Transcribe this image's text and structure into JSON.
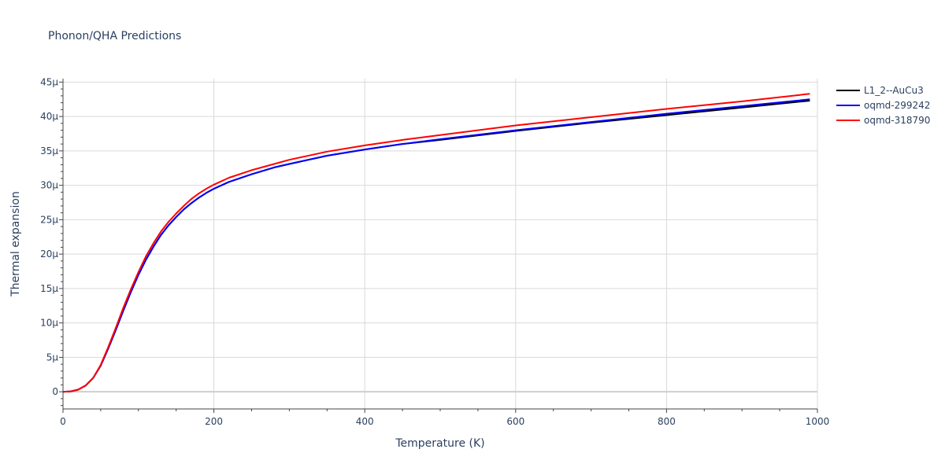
{
  "chart_data": {
    "type": "line",
    "title": "Phonon/QHA Predictions",
    "xlabel": "Temperature (K)",
    "ylabel": "Thermal expansion",
    "xlim": [
      0,
      1000
    ],
    "ylim": [
      -2.5,
      45.5
    ],
    "x_ticks": [
      {
        "value": 0,
        "label": "0"
      },
      {
        "value": 200,
        "label": "200"
      },
      {
        "value": 400,
        "label": "400"
      },
      {
        "value": 600,
        "label": "600"
      },
      {
        "value": 800,
        "label": "800"
      },
      {
        "value": 1000,
        "label": "1000"
      }
    ],
    "y_ticks": [
      {
        "value": 0,
        "label": "0"
      },
      {
        "value": 5,
        "label": "5μ"
      },
      {
        "value": 10,
        "label": "10μ"
      },
      {
        "value": 15,
        "label": "15μ"
      },
      {
        "value": 20,
        "label": "20μ"
      },
      {
        "value": 25,
        "label": "25μ"
      },
      {
        "value": 30,
        "label": "30μ"
      },
      {
        "value": 35,
        "label": "35μ"
      },
      {
        "value": 40,
        "label": "40μ"
      },
      {
        "value": 45,
        "label": "45μ"
      }
    ],
    "grid": true,
    "legend_position": "top-right",
    "x": [
      0,
      10,
      20,
      30,
      40,
      50,
      60,
      70,
      80,
      90,
      100,
      110,
      120,
      130,
      140,
      150,
      160,
      170,
      180,
      190,
      200,
      220,
      250,
      280,
      300,
      350,
      400,
      450,
      500,
      600,
      700,
      800,
      900,
      990
    ],
    "series": [
      {
        "name": "L1_2--AuCu3",
        "color": "#000000",
        "values": [
          0,
          0.05,
          0.3,
          0.9,
          2.0,
          3.8,
          6.3,
          9.0,
          11.8,
          14.5,
          17.0,
          19.2,
          21.1,
          22.8,
          24.2,
          25.4,
          26.5,
          27.4,
          28.2,
          28.9,
          29.5,
          30.5,
          31.6,
          32.6,
          33.1,
          34.3,
          35.2,
          36.0,
          36.6,
          37.9,
          39.1,
          40.2,
          41.3,
          42.3
        ]
      },
      {
        "name": "oqmd-299242",
        "color": "#0000ff",
        "values": [
          0,
          0.05,
          0.3,
          0.9,
          2.0,
          3.8,
          6.3,
          9.0,
          11.8,
          14.5,
          17.0,
          19.2,
          21.1,
          22.8,
          24.2,
          25.4,
          26.5,
          27.4,
          28.2,
          28.9,
          29.5,
          30.5,
          31.6,
          32.6,
          33.1,
          34.3,
          35.2,
          36.0,
          36.7,
          38.0,
          39.2,
          40.4,
          41.5,
          42.5
        ]
      },
      {
        "name": "oqmd-318790",
        "color": "#ff0000",
        "values": [
          0,
          0.05,
          0.3,
          0.9,
          2.0,
          3.9,
          6.5,
          9.3,
          12.2,
          14.9,
          17.4,
          19.7,
          21.6,
          23.3,
          24.7,
          25.9,
          27.0,
          28.0,
          28.8,
          29.5,
          30.1,
          31.1,
          32.2,
          33.1,
          33.7,
          34.9,
          35.8,
          36.6,
          37.3,
          38.7,
          39.9,
          41.1,
          42.2,
          43.3
        ]
      }
    ]
  }
}
